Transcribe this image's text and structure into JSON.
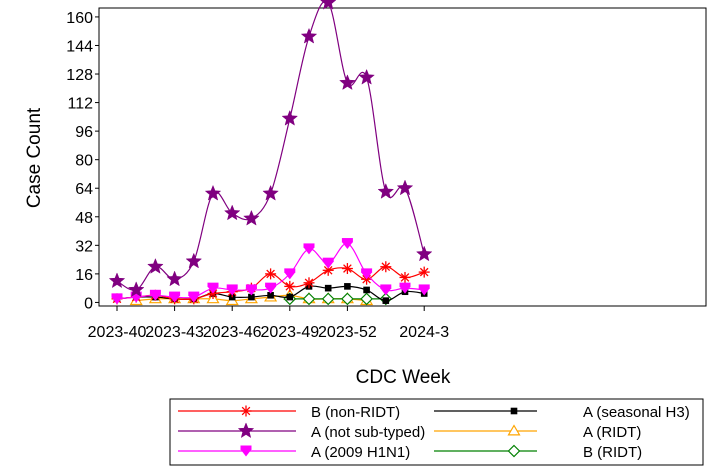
{
  "chart_data": {
    "type": "line",
    "xlabel": "CDC Week",
    "ylabel": "Case Count",
    "x_ticks": [
      "2023-40",
      "2023-43",
      "2023-46",
      "2023-49",
      "2023-52",
      "2024-3"
    ],
    "y_ticks": [
      0,
      16,
      32,
      48,
      64,
      80,
      96,
      112,
      128,
      144,
      160
    ],
    "ylim": [
      -2,
      165
    ],
    "grid": false,
    "legend_position": "bottom",
    "weeks": [
      "2023-40",
      "2023-41",
      "2023-42",
      "2023-43",
      "2023-44",
      "2023-45",
      "2023-46",
      "2023-47",
      "2023-48",
      "2023-49",
      "2023-50",
      "2023-51",
      "2023-52",
      "2023-53",
      "2024-1",
      "2024-2",
      "2024-3",
      "2024-4"
    ],
    "series": [
      {
        "name": "B (non-RIDT)",
        "color": "#ff0000",
        "marker": "asterisk",
        "values": [
          2,
          3,
          4,
          2,
          2,
          5,
          6,
          8,
          16,
          9,
          11,
          18,
          19,
          13,
          20,
          14,
          17,
          null
        ]
      },
      {
        "name": "A (seasonal H3)",
        "color": "#000000",
        "marker": "square",
        "values": [
          2,
          3,
          3,
          2,
          2,
          5,
          3,
          3,
          4,
          3,
          9,
          8,
          9,
          7,
          1,
          6,
          5,
          null
        ]
      },
      {
        "name": "A (not sub-typed)",
        "color": "#800080",
        "marker": "star",
        "values": [
          12,
          7,
          20,
          13,
          23,
          61,
          50,
          47,
          61,
          103,
          149,
          168,
          123,
          126,
          62,
          64,
          27,
          null
        ]
      },
      {
        "name": "A (RIDT)",
        "color": "#ffa500",
        "marker": "triangle-open",
        "values": [
          null,
          1,
          2,
          2,
          2,
          2,
          1,
          2,
          3,
          4,
          2,
          2,
          2,
          1,
          null,
          null,
          null,
          null
        ]
      },
      {
        "name": "A (2009 H1N1)",
        "color": "#ff00ff",
        "marker": "inverted-triangle",
        "values": [
          2,
          3,
          4,
          3,
          3,
          8,
          7,
          7,
          8,
          16,
          30,
          22,
          33,
          16,
          7,
          8,
          7,
          null
        ]
      },
      {
        "name": "B (RIDT)",
        "color": "#008000",
        "marker": "diamond-open",
        "values": [
          null,
          null,
          null,
          null,
          null,
          null,
          null,
          null,
          null,
          2,
          2,
          2,
          2,
          2,
          2,
          null,
          null,
          null
        ]
      }
    ]
  }
}
